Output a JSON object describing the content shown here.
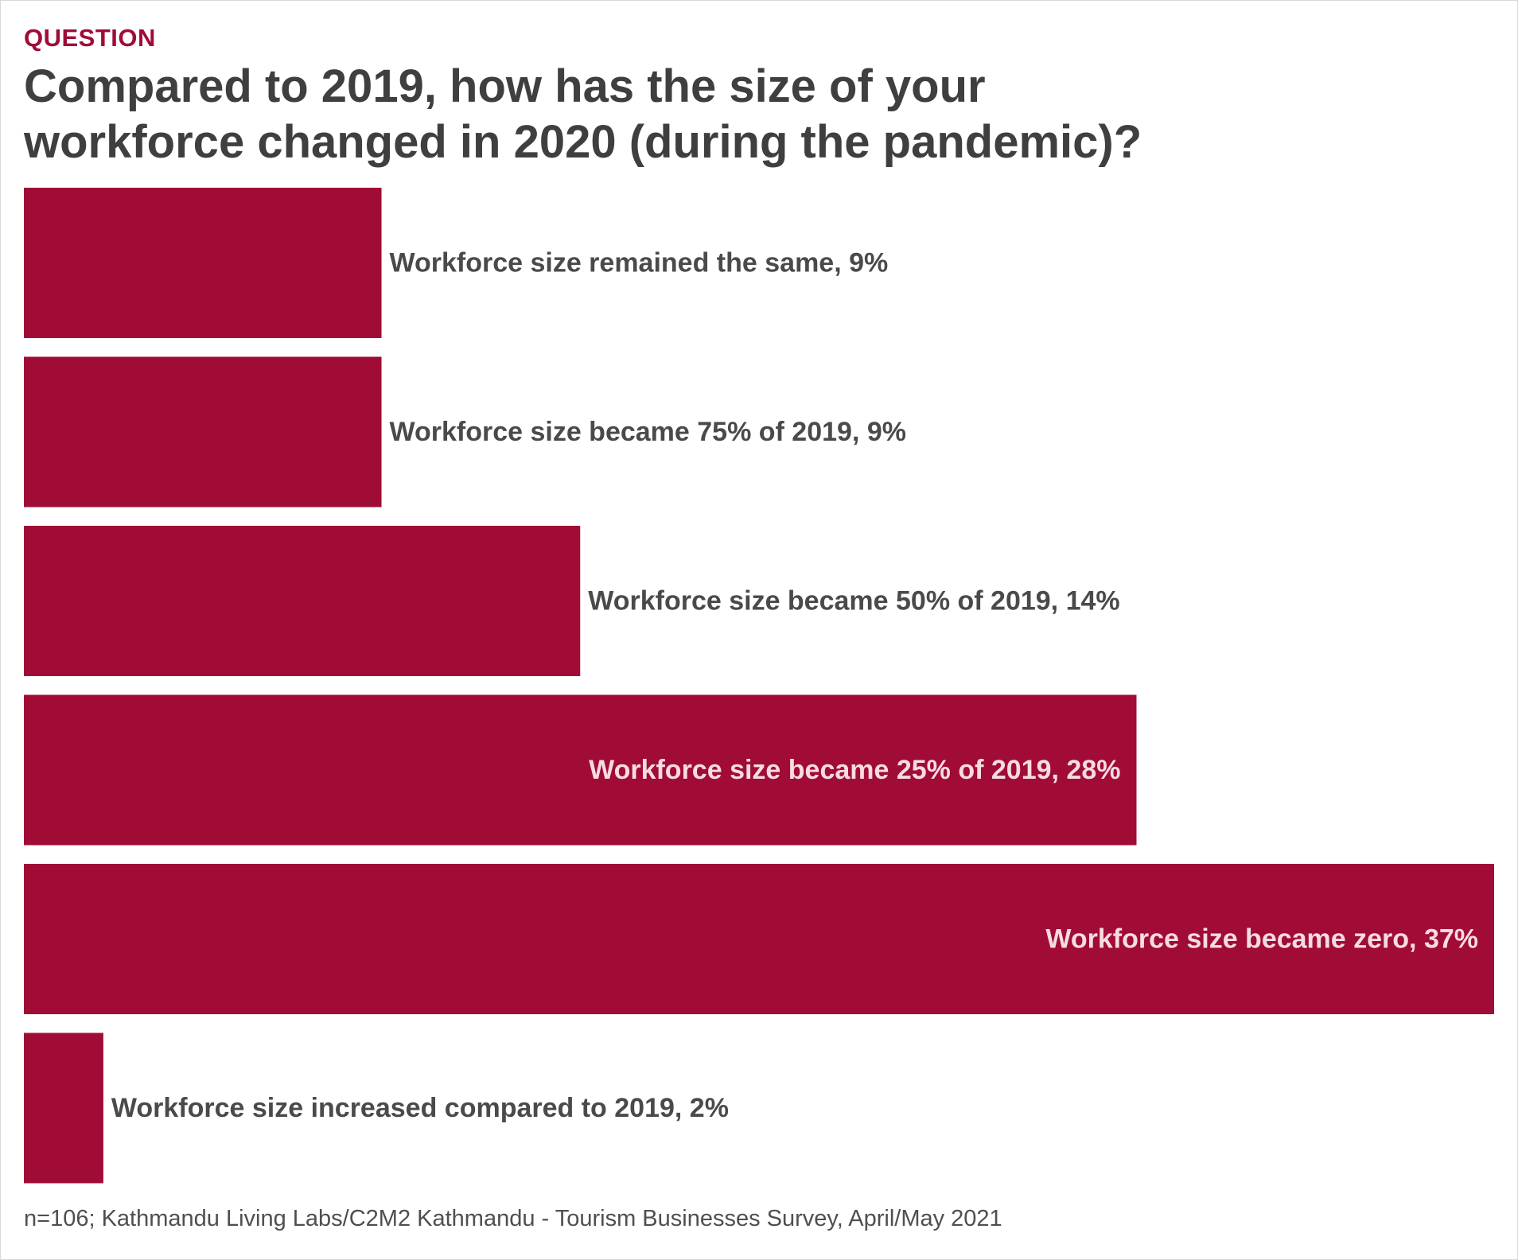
{
  "header": {
    "eyebrow": "QUESTION",
    "title": "Compared to 2019, how has the size of your workforce changed in 2020 (during the pandemic)?"
  },
  "footnote": "n=106; Kathmandu Living Labs/C2M2 Kathmandu - Tourism Businesses Survey, April/May 2021",
  "colors": {
    "bar": "#a00c35",
    "label_outside": "#4a4a4a",
    "label_inside": "#f7dbe3",
    "eyebrow": "#a00c35",
    "title": "#3f3f3f"
  },
  "chart_data": {
    "type": "bar",
    "orientation": "horizontal",
    "categories": [
      "Workforce size remained the same",
      "Workforce size became 75% of 2019",
      "Workforce size became 50% of 2019",
      "Workforce size became 25% of 2019",
      "Workforce size became zero",
      "Workforce size increased compared to 2019"
    ],
    "values": [
      9,
      9,
      14,
      28,
      37,
      2
    ],
    "labels": [
      "Workforce size remained the same, 9%",
      "Workforce size became 75% of 2019, 9%",
      "Workforce size became 50% of 2019, 14%",
      "Workforce size became 25% of 2019, 28%",
      "Workforce size became zero, 37%",
      "Workforce size increased compared to 2019, 2%"
    ],
    "unit": "%",
    "xlim": [
      0,
      37
    ],
    "grid": false,
    "legend": "none"
  }
}
